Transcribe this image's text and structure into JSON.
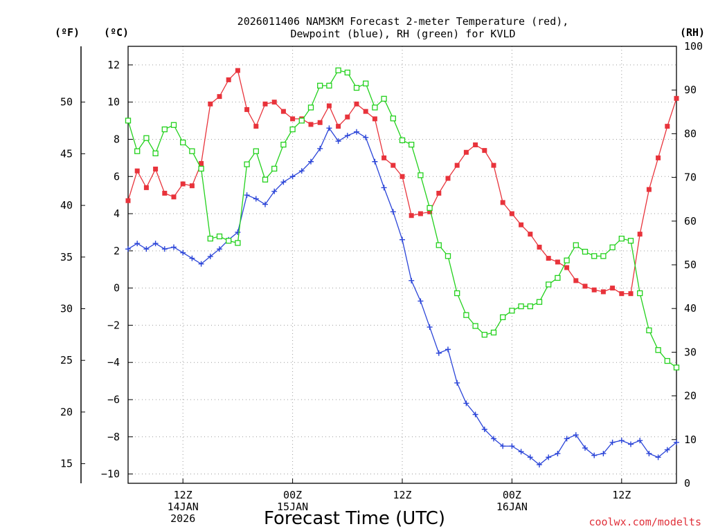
{
  "title": {
    "line1": "2026011406 NAM3KM Forecast 2-meter Temperature (red),",
    "line2": "Dewpoint (blue), RH (green) for KVLD"
  },
  "units": {
    "fahrenheit": "(ºF)",
    "celsius": "(ºC)",
    "rh": "(RH)"
  },
  "xlabel": "Forecast Time (UTC)",
  "watermark": "coolwx.com/modelts",
  "colors": {
    "temperature": "#e8333b",
    "dewpoint": "#2a44d8",
    "rh": "#22d11c",
    "grid": "#999999"
  },
  "chart_data": {
    "type": "line",
    "title": "2026011406 NAM3KM Forecast 2-meter Temperature (red), Dewpoint (blue), RH (green) for KVLD",
    "xlabel": "Forecast Time (UTC)",
    "x_unit": "hours since 2026-01-14 06Z",
    "xlim": [
      0,
      60
    ],
    "celsius_axis": {
      "ylim": [
        -10.5,
        13
      ],
      "ticks": [
        -10,
        -8,
        -6,
        -4,
        -2,
        0,
        2,
        4,
        6,
        8,
        10,
        12
      ]
    },
    "fahrenheit_axis": {
      "ticks": [
        15,
        20,
        25,
        30,
        35,
        40,
        45,
        50
      ]
    },
    "rh_axis": {
      "ylim": [
        0,
        100
      ],
      "ticks": [
        0,
        10,
        20,
        30,
        40,
        50,
        60,
        70,
        80,
        90,
        100
      ]
    },
    "x_ticks": [
      {
        "x": 6,
        "labels": [
          "12Z",
          "14JAN",
          "2026"
        ]
      },
      {
        "x": 18,
        "labels": [
          "00Z",
          "15JAN"
        ]
      },
      {
        "x": 30,
        "labels": [
          "12Z"
        ]
      },
      {
        "x": 42,
        "labels": [
          "00Z",
          "16JAN"
        ]
      },
      {
        "x": 54,
        "labels": [
          "12Z"
        ]
      }
    ],
    "series": [
      {
        "name": "2-meter Temperature",
        "unit": "°C",
        "axis": "celsius",
        "color": "#e8333b",
        "marker": "filled-square",
        "values": [
          4.7,
          6.3,
          5.4,
          6.4,
          5.1,
          4.9,
          5.6,
          5.5,
          6.7,
          9.9,
          10.3,
          11.2,
          11.7,
          9.6,
          8.7,
          9.9,
          10.0,
          9.5,
          9.1,
          9.1,
          8.8,
          8.9,
          9.8,
          8.7,
          9.2,
          9.9,
          9.5,
          9.1,
          7.0,
          6.6,
          6.0,
          3.9,
          4.0,
          4.1,
          5.1,
          5.9,
          6.6,
          7.3,
          7.7,
          7.4,
          6.6,
          4.6,
          4.0,
          3.4,
          2.9,
          2.2,
          1.6,
          1.4,
          1.1,
          0.4,
          0.1,
          -0.1,
          -0.2,
          0.0,
          -0.3,
          -0.3,
          2.9,
          5.3,
          7.0,
          8.7,
          10.2
        ]
      },
      {
        "name": "Dewpoint",
        "unit": "°C",
        "axis": "celsius",
        "color": "#2a44d8",
        "marker": "plus",
        "values": [
          2.1,
          2.4,
          2.1,
          2.4,
          2.1,
          2.2,
          1.9,
          1.6,
          1.3,
          1.7,
          2.1,
          2.6,
          3.0,
          5.0,
          4.8,
          4.5,
          5.2,
          5.7,
          6.0,
          6.3,
          6.8,
          7.5,
          8.6,
          7.9,
          8.2,
          8.4,
          8.1,
          6.8,
          5.4,
          4.1,
          2.6,
          0.4,
          -0.7,
          -2.1,
          -3.5,
          -3.3,
          -5.1,
          -6.2,
          -6.8,
          -7.6,
          -8.1,
          -8.5,
          -8.5,
          -8.8,
          -9.1,
          -9.5,
          -9.1,
          -8.9,
          -8.1,
          -7.9,
          -8.6,
          -9.0,
          -8.9,
          -8.3,
          -8.2,
          -8.4,
          -8.2,
          -8.9,
          -9.1,
          -8.7,
          -8.3
        ]
      },
      {
        "name": "Relative Humidity",
        "unit": "%",
        "axis": "rh",
        "color": "#22d11c",
        "marker": "open-square",
        "values": [
          83,
          76,
          79,
          75.5,
          81,
          82,
          78,
          76,
          72,
          56,
          56.5,
          55.5,
          55,
          73,
          76,
          69.5,
          72,
          77.5,
          81,
          83,
          86,
          91,
          91,
          94.5,
          94,
          90.5,
          91.5,
          86,
          88,
          83.5,
          78.5,
          77.5,
          70.5,
          63,
          54.5,
          52,
          43.5,
          38.5,
          36,
          34,
          34.5,
          38,
          39.5,
          40.5,
          40.5,
          41.5,
          45.5,
          47,
          51,
          54.5,
          53,
          52,
          52,
          54,
          56,
          55.5,
          43.5,
          35,
          30.5,
          28,
          26.5
        ]
      }
    ]
  }
}
